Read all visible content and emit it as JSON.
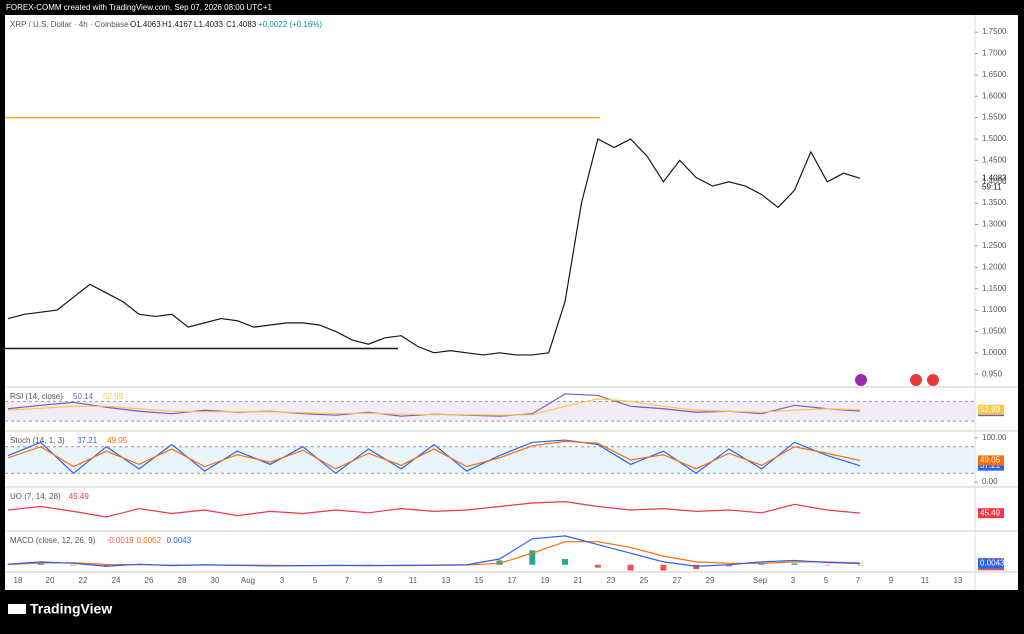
{
  "header": {
    "attribution": "FOREX-COMM created with TradingView.com, Sep 07, 2026 08:00 UTC+1",
    "symbol": "XRP / U.S. Dollar · 4h · Coinbase",
    "ohlc": [
      "O1.4063",
      "H1.4167",
      "L1.4033",
      "C1.4083",
      "+0.0022 (+0.16%)"
    ]
  },
  "x_labels": [
    "18",
    "20",
    "22",
    "24",
    "26",
    "28",
    "30",
    "Aug",
    "3",
    "5",
    "7",
    "9",
    "11",
    "13",
    "15",
    "17",
    "19",
    "21",
    "23",
    "25",
    "27",
    "29",
    "Sep",
    "3",
    "5",
    "7",
    "9",
    "11",
    "13"
  ],
  "chart_data": [
    {
      "type": "line",
      "color": "#131722",
      "values": [
        1.08,
        1.09,
        1.095,
        1.1,
        1.13,
        1.16,
        1.14,
        1.12,
        1.09,
        1.085,
        1.09,
        1.06,
        1.07,
        1.08,
        1.075,
        1.06,
        1.065,
        1.07,
        1.07,
        1.065,
        1.05,
        1.03,
        1.02,
        1.035,
        1.04,
        1.015,
        1.0,
        1.005,
        1.0,
        0.995,
        1.0,
        0.995,
        0.995,
        1.0,
        1.12,
        1.35,
        1.5,
        1.48,
        1.5,
        1.46,
        1.4,
        1.45,
        1.41,
        1.39,
        1.4,
        1.39,
        1.37,
        1.34,
        1.38,
        1.47,
        1.4,
        1.42,
        1.408
      ],
      "ylim": [
        0.92,
        1.79
      ],
      "yticks": [
        {
          "value": 0.95,
          "label": "0.950"
        },
        {
          "value": 1.0,
          "label": "1.0000"
        },
        {
          "value": 1.05,
          "label": "1.0500"
        },
        {
          "value": 1.1,
          "label": "1.1000"
        },
        {
          "value": 1.15,
          "label": "1.1500"
        },
        {
          "value": 1.2,
          "label": "1.2000"
        },
        {
          "value": 1.25,
          "label": "1.2500"
        },
        {
          "value": 1.3,
          "label": "1.3000"
        },
        {
          "value": 1.35,
          "label": "1.3500"
        },
        {
          "value": 1.4,
          "label": "1.4000"
        },
        {
          "value": 1.45,
          "label": "1.4500"
        },
        {
          "value": 1.5,
          "label": "1.5000"
        },
        {
          "value": 1.55,
          "label": "1.5500"
        },
        {
          "value": 1.6,
          "label": "1.6000"
        },
        {
          "value": 1.65,
          "label": "1.6500"
        },
        {
          "value": 1.7,
          "label": "1.7000"
        },
        {
          "value": 1.75,
          "label": "1.7500"
        }
      ],
      "hlines": [
        {
          "value": 1.55,
          "color": "#f5a623"
        },
        {
          "value": 1.01,
          "color": "#131722"
        }
      ],
      "last_price": 1.4083,
      "countdown": "59:11"
    },
    {
      "type": "line",
      "title": "RSI (14, close)",
      "ylim": [
        10,
        95
      ],
      "hlines": [
        70,
        30
      ],
      "series": [
        {
          "color": "#7e57c2",
          "values": [
            55,
            62,
            68,
            58,
            50,
            45,
            52,
            48,
            50,
            45,
            42,
            48,
            40,
            44,
            42,
            40,
            45,
            85,
            82,
            60,
            55,
            48,
            50,
            45,
            62,
            55,
            50.14
          ]
        },
        {
          "color": "#f7c948",
          "values": [
            52,
            56,
            60,
            60,
            55,
            50,
            49,
            49,
            49,
            47,
            45,
            46,
            44,
            43,
            43,
            42,
            43,
            60,
            75,
            70,
            60,
            52,
            50,
            48,
            52,
            55,
            52.99
          ]
        }
      ]
    },
    {
      "type": "line",
      "title": "Stoch (14, 1, 3)",
      "ylim": [
        -11,
        111
      ],
      "hlines": [
        80,
        20
      ],
      "yticks": [
        {
          "value": 100,
          "label": "100.00"
        },
        {
          "value": 0,
          "label": "0.00"
        }
      ],
      "series": [
        {
          "color": "#2962ff",
          "values": [
            60,
            90,
            20,
            80,
            30,
            85,
            25,
            70,
            40,
            80,
            20,
            75,
            30,
            85,
            25,
            60,
            90,
            95,
            85,
            40,
            70,
            20,
            75,
            30,
            90,
            60,
            37.21
          ]
        },
        {
          "color": "#ff6d00",
          "values": [
            55,
            80,
            35,
            70,
            40,
            75,
            35,
            62,
            45,
            72,
            30,
            65,
            38,
            75,
            35,
            55,
            82,
            92,
            88,
            50,
            62,
            30,
            65,
            38,
            80,
            65,
            49.05
          ]
        }
      ]
    },
    {
      "type": "line",
      "title": "UO (7, 14, 28)",
      "ylim": [
        20,
        80
      ],
      "series": [
        {
          "color": "#f23645",
          "values": [
            50,
            55,
            48,
            40,
            52,
            45,
            50,
            42,
            48,
            45,
            50,
            46,
            52,
            48,
            50,
            55,
            60,
            62,
            55,
            50,
            52,
            48,
            50,
            46,
            58,
            50,
            45.49
          ]
        }
      ]
    },
    {
      "type": "macd",
      "title": "MACD (close, 12, 26, 9)",
      "ylim": [
        -0.025,
        0.11
      ],
      "histogram": [
        0.001,
        0.004,
        -0.002,
        -0.006,
        0.002,
        -0.002,
        0.001,
        -0.001,
        -0.002,
        0,
        0.001,
        -0.001,
        0.001,
        0.001,
        0.001,
        0.015,
        0.05,
        0.02,
        -0.01,
        -0.02,
        -0.02,
        -0.015,
        -0.005,
        0.005,
        0.005,
        -0.002,
        -0.0019
      ],
      "series": [
        {
          "color": "#ff6d00",
          "values": [
            0.001,
            0.006,
            0.007,
            0.001,
            0.0,
            -0.001,
            -0.001,
            -0.001,
            -0.002,
            -0.003,
            -0.003,
            -0.002,
            -0.003,
            -0.002,
            -0.001,
            0.005,
            0.04,
            0.08,
            0.08,
            0.06,
            0.03,
            0.01,
            0.005,
            0.005,
            0.01,
            0.01,
            0.0062
          ]
        },
        {
          "color": "#2962ff",
          "values": [
            0.002,
            0.01,
            0.005,
            -0.005,
            0.002,
            -0.003,
            0,
            -0.002,
            -0.004,
            -0.003,
            -0.002,
            -0.003,
            -0.002,
            -0.001,
            0,
            0.02,
            0.09,
            0.1,
            0.07,
            0.04,
            0.01,
            -0.005,
            0.0,
            0.01,
            0.015,
            0.008,
            0.0043
          ]
        }
      ]
    }
  ],
  "footer": {
    "brand": "TradingView"
  }
}
